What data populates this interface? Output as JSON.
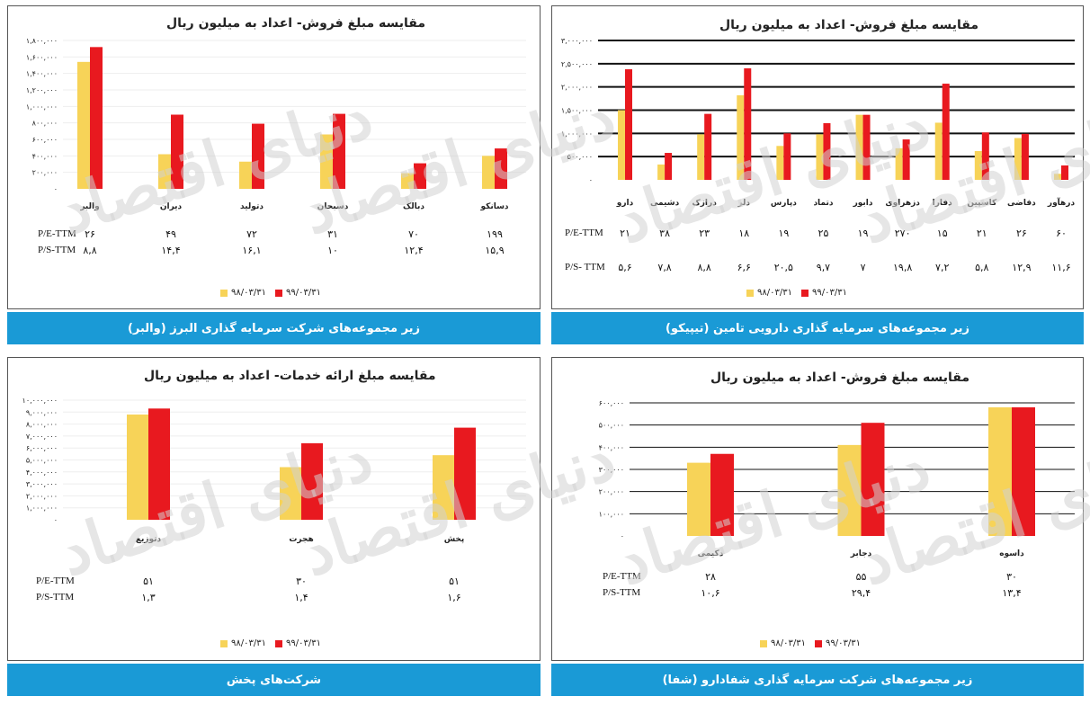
{
  "colors": {
    "series1": "#f7d358",
    "series2": "#e8191f",
    "band": "#1a9ad6"
  },
  "watermark": "دنیای اقتصاد",
  "chart_data": [
    {
      "id": "alborz",
      "type": "bar",
      "title": "مقایسه مبلغ فروش- اعداد به میلیون ریال",
      "band": "زیر مجموعه‌های شرکت سرمایه گذاری البرز (والبر)",
      "ylim": [
        0,
        1800000
      ],
      "ticks": [
        "۰",
        "۲۰۰,۰۰۰",
        "۴۰۰,۰۰۰",
        "۶۰۰,۰۰۰",
        "۸۰۰,۰۰۰",
        "۱,۰۰۰,۰۰۰",
        "۱,۲۰۰,۰۰۰",
        "۱,۴۰۰,۰۰۰",
        "۱,۶۰۰,۰۰۰",
        "۱,۸۰۰,۰۰۰"
      ],
      "tickValues": [
        0,
        200000,
        400000,
        600000,
        800000,
        1000000,
        1200000,
        1400000,
        1600000,
        1800000
      ],
      "categories": [
        "والبر",
        "دیران",
        "دتولید",
        "دسبحان",
        "دبالک",
        "دسانکو"
      ],
      "series": [
        {
          "name": "۹۸/۰۳/۳۱",
          "values": [
            1540000,
            420000,
            330000,
            660000,
            190000,
            400000
          ]
        },
        {
          "name": "۹۹/۰۳/۳۱",
          "values": [
            1720000,
            900000,
            790000,
            910000,
            310000,
            490000
          ]
        }
      ],
      "rows": [
        {
          "label": "P/E-TTM",
          "values": [
            "۲۶",
            "۴۹",
            "۷۲",
            "۳۱",
            "۷۰",
            "۱۹۹"
          ]
        },
        {
          "label": "P/S-TTM",
          "values": [
            "۸,۸",
            "۱۴,۴",
            "۱۶,۱",
            "۱۰",
            "۱۲,۴",
            "۱۵,۹"
          ]
        }
      ],
      "grid": false,
      "legend": "bottom"
    },
    {
      "id": "tipico",
      "type": "bar",
      "title": "مقایسه مبلغ فروش- اعداد به میلیون ریال",
      "band": "زیر مجموعه‌های سرمایه گذاری دارویی تامین (تیپیکو)",
      "ylim": [
        0,
        3000000
      ],
      "ticks": [
        "۰",
        "۵۰۰,۰۰۰",
        "۱,۰۰۰,۰۰۰",
        "۱,۵۰۰,۰۰۰",
        "۲,۰۰۰,۰۰۰",
        "۲,۵۰۰,۰۰۰",
        "۳,۰۰۰,۰۰۰"
      ],
      "tickValues": [
        0,
        500000,
        1000000,
        1500000,
        2000000,
        2500000,
        3000000
      ],
      "categories": [
        "دارو",
        "دشیمی",
        "درازک",
        "دلر",
        "دپارس",
        "دتماد",
        "دابور",
        "دزهراوی",
        "دفارا",
        "کاسپین",
        "دفاضی",
        "درهآور"
      ],
      "series": [
        {
          "name": "۹۸/۰۳/۳۱",
          "values": [
            1500000,
            330000,
            980000,
            1820000,
            730000,
            980000,
            1400000,
            680000,
            1230000,
            620000,
            900000,
            130000
          ]
        },
        {
          "name": "۹۹/۰۳/۳۱",
          "values": [
            2380000,
            580000,
            1420000,
            2400000,
            1000000,
            1220000,
            1400000,
            870000,
            2070000,
            1020000,
            990000,
            310000
          ]
        }
      ],
      "rows": [
        {
          "label": "P/E-TTM",
          "values": [
            "۲۱",
            "۳۸",
            "۲۳",
            "۱۸",
            "۱۹",
            "۲۵",
            "۱۹",
            "۲۷۰",
            "۱۵",
            "۲۱",
            "۲۶",
            "۶۰"
          ]
        },
        {
          "label": "P/S- TTM",
          "values": [
            "۵,۶",
            "۷,۸",
            "۸,۸",
            "۶,۶",
            "۲۰,۵",
            "۹,۷",
            "۷",
            "۱۹,۸",
            "۷,۲",
            "۵,۸",
            "۱۲,۹",
            "۱۱,۶"
          ]
        }
      ],
      "grid": true,
      "legend": "bottom"
    },
    {
      "id": "pakhsh",
      "type": "bar",
      "title": "مقایسه مبلغ ارائه خدمات- اعداد به میلیون ریال",
      "band": "شرکت‌های پخش",
      "ylim": [
        0,
        10000000
      ],
      "ticks": [
        "۰",
        "۱,۰۰۰,۰۰۰",
        "۲,۰۰۰,۰۰۰",
        "۳,۰۰۰,۰۰۰",
        "۴,۰۰۰,۰۰۰",
        "۵,۰۰۰,۰۰۰",
        "۶,۰۰۰,۰۰۰",
        "۷,۰۰۰,۰۰۰",
        "۸,۰۰۰,۰۰۰",
        "۹,۰۰۰,۰۰۰",
        "۱۰,۰۰۰,۰۰۰"
      ],
      "tickValues": [
        0,
        1000000,
        2000000,
        3000000,
        4000000,
        5000000,
        6000000,
        7000000,
        8000000,
        9000000,
        10000000
      ],
      "categories": [
        "دتوزیع",
        "هجرت",
        "پخش"
      ],
      "series": [
        {
          "name": "۹۸/۰۳/۳۱",
          "values": [
            8800000,
            4400000,
            5400000
          ]
        },
        {
          "name": "۹۹/۰۳/۳۱",
          "values": [
            9300000,
            6400000,
            7700000
          ]
        }
      ],
      "rows": [
        {
          "label": "P/E-TTM",
          "values": [
            "۵۱",
            "۳۰",
            "۵۱"
          ]
        },
        {
          "label": "P/S-TTM",
          "values": [
            "۱,۳",
            "۱,۴",
            "۱,۶"
          ]
        }
      ],
      "grid": false,
      "legend": "bottom"
    },
    {
      "id": "shafa",
      "type": "bar",
      "title": "مقایسه مبلغ فروش- اعداد به میلیون ریال",
      "band": "زیر مجموعه‌های شرکت سرمایه گذاری شفادارو (شفا)",
      "ylim": [
        0,
        600000
      ],
      "ticks": [
        "۰",
        "۱۰۰,۰۰۰",
        "۲۰۰,۰۰۰",
        "۳۰۰,۰۰۰",
        "۴۰۰,۰۰۰",
        "۵۰۰,۰۰۰",
        "۶۰۰,۰۰۰"
      ],
      "tickValues": [
        0,
        100000,
        200000,
        300000,
        400000,
        500000,
        600000
      ],
      "categories": [
        "دکیمی",
        "دجابر",
        "داسوه"
      ],
      "series": [
        {
          "name": "۹۸/۰۳/۳۱",
          "values": [
            330000,
            410000,
            580000
          ]
        },
        {
          "name": "۹۹/۰۳/۳۱",
          "values": [
            370000,
            510000,
            580000
          ]
        }
      ],
      "rows": [
        {
          "label": "P/E-TTM",
          "values": [
            "۲۸",
            "۵۵",
            "۳۰"
          ]
        },
        {
          "label": "P/S-TTM",
          "values": [
            "۱۰,۶",
            "۲۹,۴",
            "۱۳,۴"
          ]
        }
      ],
      "grid": true,
      "legend": "bottom"
    }
  ]
}
